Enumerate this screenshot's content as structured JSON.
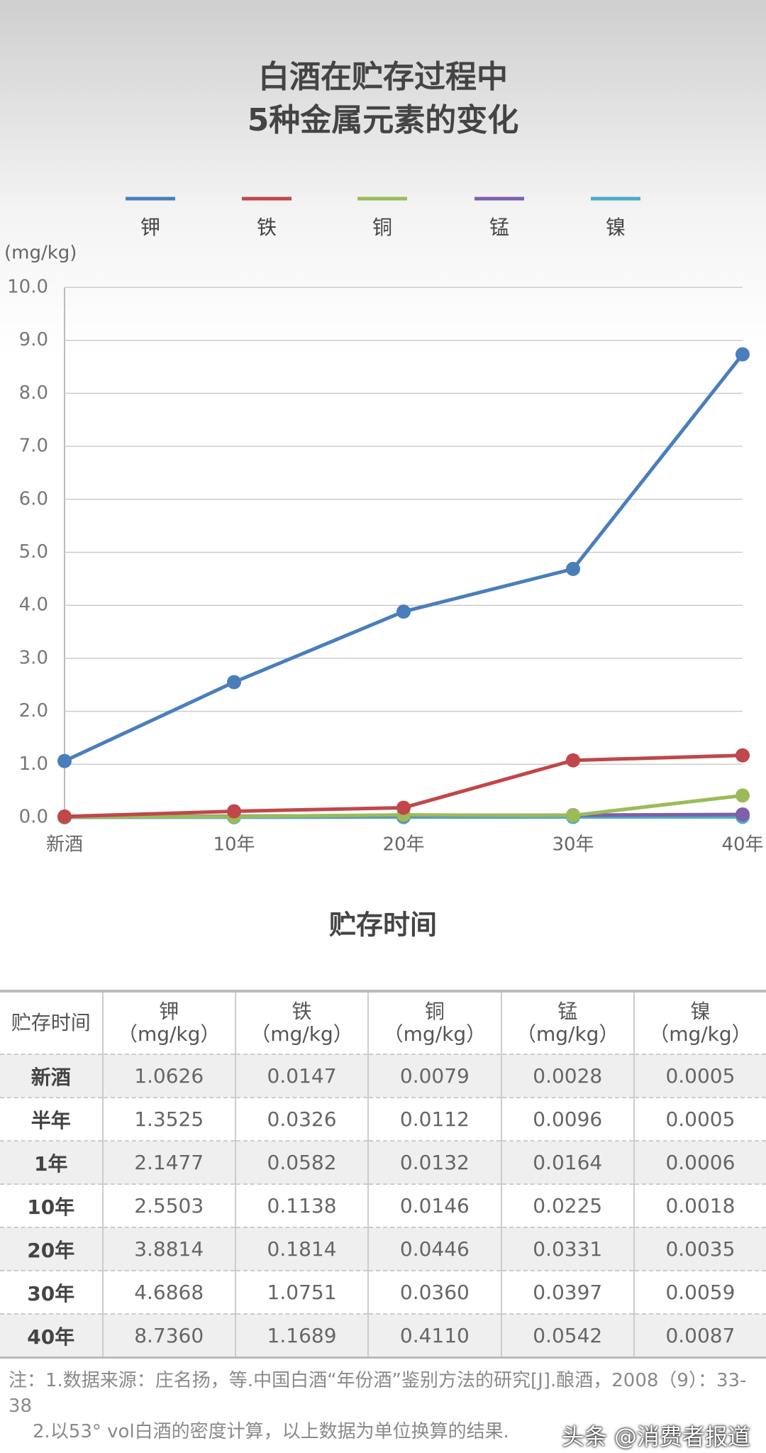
{
  "chart_data": {
    "type": "line",
    "title": [
      "白酒在贮存过程中",
      "5种金属元素的变化"
    ],
    "y_label": "(mg/kg)",
    "x_label": "贮存时间",
    "categories": [
      "新酒",
      "10年",
      "20年",
      "30年",
      "40年"
    ],
    "series": [
      {
        "name": "钾",
        "color": "#4a7ebb",
        "values": [
          1.0626,
          2.5503,
          3.8814,
          4.6868,
          8.736
        ]
      },
      {
        "name": "铁",
        "color": "#c0474a",
        "values": [
          0.0147,
          0.1138,
          0.1814,
          1.0751,
          1.1689
        ]
      },
      {
        "name": "铜",
        "color": "#9bbb59",
        "values": [
          0.0079,
          0.0146,
          0.0446,
          0.036,
          0.411
        ]
      },
      {
        "name": "锰",
        "color": "#7e5fa8",
        "values": [
          0.0028,
          0.0225,
          0.0331,
          0.0397,
          0.0542
        ]
      },
      {
        "name": "镍",
        "color": "#4bacc6",
        "values": [
          0.0005,
          0.0018,
          0.0035,
          0.0059,
          0.0087
        ]
      }
    ],
    "ylim": [
      0,
      10
    ],
    "yticks": [
      {
        "value": 0,
        "label": "0.0"
      },
      {
        "value": 1,
        "label": "1.0"
      },
      {
        "value": 2,
        "label": "2.0"
      },
      {
        "value": 3,
        "label": "3.0"
      },
      {
        "value": 4,
        "label": "4.0"
      },
      {
        "value": 5,
        "label": "5.0"
      },
      {
        "value": 6,
        "label": "6.0"
      },
      {
        "value": 7,
        "label": "7.0"
      },
      {
        "value": 8,
        "label": "8.0"
      },
      {
        "value": 9,
        "label": "9.0"
      },
      {
        "value": 10,
        "label": "10.0"
      }
    ],
    "grid": true,
    "legend": "top"
  },
  "table": {
    "header": [
      "贮存时间",
      "钾",
      "铁",
      "铜",
      "锰",
      "镍"
    ],
    "unit": "（mg/kg）",
    "rows": [
      [
        "新酒",
        "1.0626",
        "0.0147",
        "0.0079",
        "0.0028",
        "0.0005"
      ],
      [
        "半年",
        "1.3525",
        "0.0326",
        "0.0112",
        "0.0096",
        "0.0005"
      ],
      [
        "1年",
        "2.1477",
        "0.0582",
        "0.0132",
        "0.0164",
        "0.0006"
      ],
      [
        "10年",
        "2.5503",
        "0.1138",
        "0.0146",
        "0.0225",
        "0.0018"
      ],
      [
        "20年",
        "3.8814",
        "0.1814",
        "0.0446",
        "0.0331",
        "0.0035"
      ],
      [
        "30年",
        "4.6868",
        "1.0751",
        "0.0360",
        "0.0397",
        "0.0059"
      ],
      [
        "40年",
        "8.7360",
        "1.1689",
        "0.4110",
        "0.0542",
        "0.0087"
      ]
    ]
  },
  "notes": [
    "注：1.数据来源：庄名扬，等.中国白酒“年份酒”鉴别方法的研究[J].酿酒，2008（9）：33-38",
    "2.以53° vol白酒的密度计算，以上数据为单位换算的结果."
  ],
  "watermark": "头条 @消费者报道"
}
